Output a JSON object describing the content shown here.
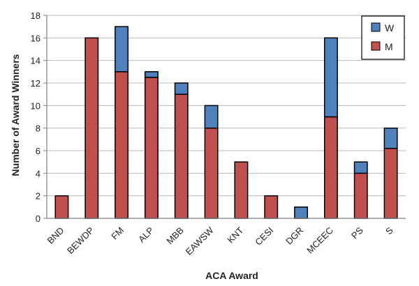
{
  "chart_data": {
    "type": "bar",
    "stacked": true,
    "title": "",
    "xlabel": "ACA Award",
    "ylabel": "Number of Award Winners",
    "ylim": [
      0,
      18
    ],
    "yticks": [
      0,
      2,
      4,
      6,
      8,
      10,
      12,
      14,
      16,
      18
    ],
    "grid": true,
    "legend_position": "top-right",
    "categories": [
      "BND",
      "BEWDP",
      "FM",
      "ALP",
      "MBB",
      "EAWSW",
      "KNT",
      "CESI",
      "DGR",
      "MCEEC",
      "PS",
      "S"
    ],
    "series": [
      {
        "name": "M",
        "color": "#c0504d",
        "values": [
          2,
          16,
          13,
          12.5,
          11,
          8,
          5,
          2,
          0,
          9,
          4,
          6.2
        ]
      },
      {
        "name": "W",
        "color": "#4f81bd",
        "values": [
          0,
          0,
          4,
          0.5,
          1,
          2,
          0,
          0,
          1,
          7,
          1,
          1.8
        ]
      }
    ],
    "legend_order": [
      "W",
      "M"
    ]
  }
}
